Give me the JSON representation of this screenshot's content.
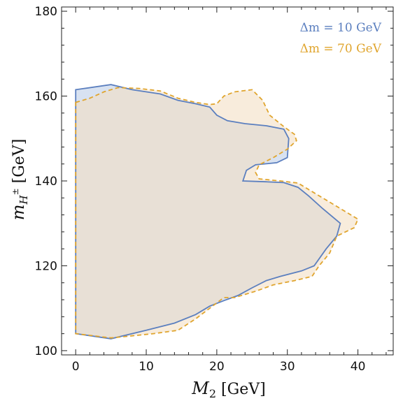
{
  "chart_data": {
    "type": "area",
    "xlabel_main": "M",
    "xlabel_sub": "2",
    "xlabel_unit": " [GeV]",
    "ylabel_main": "m",
    "ylabel_sub": "H",
    "ylabel_sup": "±",
    "ylabel_unit": " [GeV]",
    "xlim": [
      -2,
      45
    ],
    "ylim": [
      99,
      181
    ],
    "x_ticks": [
      0,
      10,
      20,
      30,
      40
    ],
    "y_ticks": [
      100,
      120,
      140,
      160,
      180
    ],
    "legend_placement": "top-right",
    "series": [
      {
        "name": "Δm = 10 GeV",
        "color": "#5b7fbf",
        "fill": "#d4dff0",
        "dashed": false,
        "points": [
          [
            0,
            161.5
          ],
          [
            5,
            162.7
          ],
          [
            8,
            161.5
          ],
          [
            12,
            160.5
          ],
          [
            14.5,
            159
          ],
          [
            17,
            158.2
          ],
          [
            19,
            157.4
          ],
          [
            20,
            155.5
          ],
          [
            21.5,
            154.2
          ],
          [
            24,
            153.5
          ],
          [
            27,
            153
          ],
          [
            29.5,
            152.2
          ],
          [
            30.2,
            150
          ],
          [
            30,
            145.5
          ],
          [
            28.5,
            144.3
          ],
          [
            25.5,
            143.8
          ],
          [
            24.2,
            142.5
          ],
          [
            23.7,
            140
          ],
          [
            27,
            139.8
          ],
          [
            29.5,
            139.6
          ],
          [
            31.5,
            138.5
          ],
          [
            33,
            136.5
          ],
          [
            35,
            133.5
          ],
          [
            37.5,
            130
          ],
          [
            37,
            127
          ],
          [
            35.5,
            124
          ],
          [
            33.8,
            120
          ],
          [
            32,
            118.8
          ],
          [
            29,
            117.5
          ],
          [
            27,
            116.5
          ],
          [
            25,
            114.8
          ],
          [
            23,
            113
          ],
          [
            21,
            111.8
          ],
          [
            19,
            110.5
          ],
          [
            17,
            108.5
          ],
          [
            14,
            106.5
          ],
          [
            10,
            104.8
          ],
          [
            5,
            102.8
          ],
          [
            0,
            104
          ],
          [
            0,
            161.5
          ]
        ]
      },
      {
        "name": "Δm = 70 GeV",
        "color": "#e0a52e",
        "fill": "#f4e0c4",
        "dashed": true,
        "points": [
          [
            0,
            158.5
          ],
          [
            2,
            159.5
          ],
          [
            4,
            161
          ],
          [
            6,
            162
          ],
          [
            9,
            161.8
          ],
          [
            12,
            161.2
          ],
          [
            14.5,
            159.5
          ],
          [
            17,
            158.5
          ],
          [
            19,
            158
          ],
          [
            20,
            158.2
          ],
          [
            21,
            160
          ],
          [
            22.5,
            161
          ],
          [
            25,
            161.5
          ],
          [
            26.5,
            159
          ],
          [
            27.5,
            155.5
          ],
          [
            29.5,
            152.8
          ],
          [
            31,
            151
          ],
          [
            31.3,
            149.5
          ],
          [
            30,
            147.5
          ],
          [
            28,
            145.5
          ],
          [
            26,
            143.8
          ],
          [
            25.5,
            142
          ],
          [
            26,
            140.5
          ],
          [
            29,
            140
          ],
          [
            31.5,
            139.5
          ],
          [
            33.5,
            137.5
          ],
          [
            35.5,
            135.5
          ],
          [
            37.5,
            133.5
          ],
          [
            40,
            131
          ],
          [
            39.5,
            129
          ],
          [
            37,
            127
          ],
          [
            36,
            123
          ],
          [
            34.5,
            120
          ],
          [
            33.5,
            117.5
          ],
          [
            31,
            116.5
          ],
          [
            28,
            115.5
          ],
          [
            25.5,
            114
          ],
          [
            22.5,
            112.5
          ],
          [
            21,
            112.5
          ],
          [
            19,
            110
          ],
          [
            17,
            107.5
          ],
          [
            14.5,
            104.8
          ],
          [
            11,
            104
          ],
          [
            8,
            103.5
          ],
          [
            5,
            103
          ],
          [
            0,
            104
          ],
          [
            0,
            158.5
          ]
        ]
      }
    ]
  }
}
